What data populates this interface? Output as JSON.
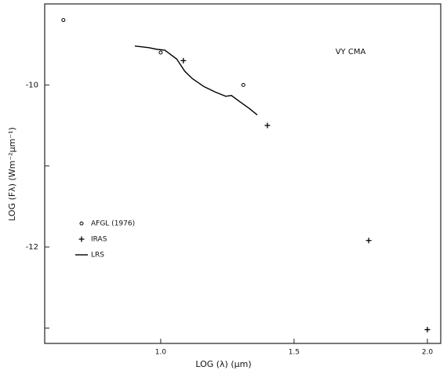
{
  "chart_data": {
    "type": "scatter",
    "annotation": "VY CMA",
    "x_label": "LOG (λ) (μm)",
    "y_label": "LOG (Fλ) (Wm⁻²μm⁻¹)",
    "xlim": [
      0.565,
      2.05
    ],
    "ylim": [
      -13.19,
      -9.0
    ],
    "xticks": [
      {
        "value": 1.0,
        "label": "1.0"
      },
      {
        "value": 1.5,
        "label": "1.5"
      },
      {
        "value": 2.0,
        "label": "2.0"
      }
    ],
    "yticks": [
      -10,
      -12
    ],
    "yticks_minor": [
      -11,
      -13
    ],
    "series": [
      {
        "name": "AFGL (1976)",
        "marker": "circle",
        "color": "#000000",
        "x": [
          0.635,
          1.0,
          1.31
        ],
        "values": [
          -9.2,
          -9.6,
          -10.0
        ]
      },
      {
        "name": "IRAS",
        "marker": "plus",
        "color": "#000000",
        "x": [
          1.085,
          1.4,
          1.78,
          2.0
        ],
        "values": [
          -9.7,
          -10.5,
          -11.92,
          -13.02
        ]
      },
      {
        "name": "LRS",
        "marker": "line",
        "color": "#000000",
        "x": [
          0.903,
          0.956,
          0.985,
          1.015,
          1.06,
          1.09,
          1.118,
          1.162,
          1.206,
          1.244,
          1.265,
          1.294,
          1.332,
          1.362
        ],
        "values": [
          -9.52,
          -9.54,
          -9.56,
          -9.57,
          -9.68,
          -9.83,
          -9.92,
          -10.02,
          -10.09,
          -10.14,
          -10.13,
          -10.2,
          -10.29,
          -10.37
        ]
      }
    ]
  }
}
